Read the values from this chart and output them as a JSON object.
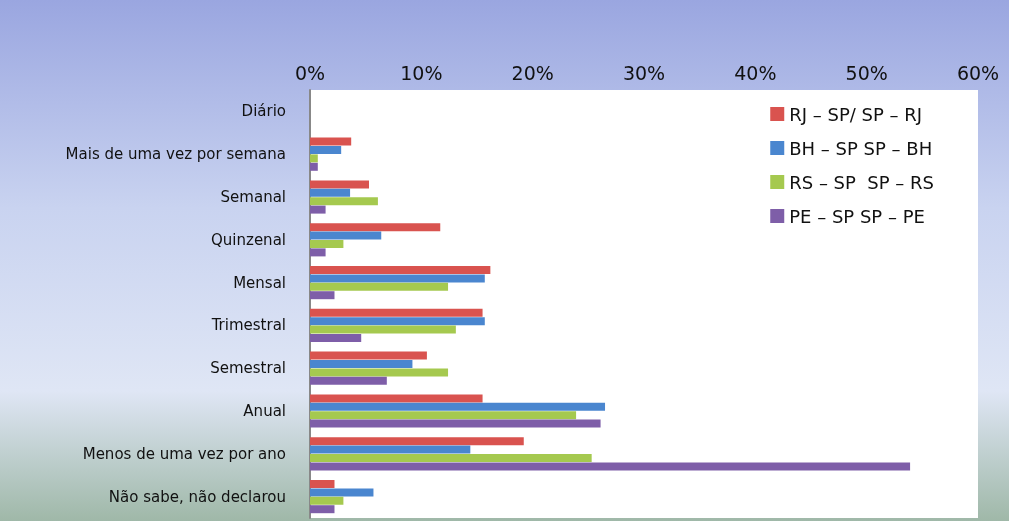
{
  "chart_data": {
    "type": "bar",
    "orientation": "horizontal",
    "categories": [
      "Diário",
      "Mais de uma vez por semana",
      "Semanal",
      "Quinzenal",
      "Mensal",
      "Trimestral",
      "Semestral",
      "Anual",
      "Menos de uma vez por ano",
      "Não sabe, não declarou"
    ],
    "series": [
      {
        "name": "RJ – SP/ SP – RJ",
        "color": "#d9534f",
        "values": [
          0,
          3.7,
          5.3,
          11.7,
          16.2,
          15.5,
          10.5,
          15.5,
          19.2,
          2.2
        ]
      },
      {
        "name": "BH – SP SP – BH",
        "color": "#4a86cf",
        "values": [
          0,
          2.8,
          3.6,
          6.4,
          15.7,
          15.7,
          9.2,
          26.5,
          14.4,
          5.7
        ]
      },
      {
        "name": "RS – SP  SP – RS",
        "color": "#a5c94f",
        "values": [
          0,
          0.7,
          6.1,
          3.0,
          12.4,
          13.1,
          12.4,
          23.9,
          25.3,
          3.0
        ]
      },
      {
        "name": "PE – SP SP – PE",
        "color": "#7e5ea8",
        "values": [
          0,
          0.7,
          1.4,
          1.4,
          2.2,
          4.6,
          6.9,
          26.1,
          53.9,
          2.2
        ]
      }
    ],
    "xlim": [
      0,
      60
    ],
    "xticks": [
      {
        "value": 0,
        "label": "0%"
      },
      {
        "value": 10,
        "label": "10%"
      },
      {
        "value": 20,
        "label": "20%"
      },
      {
        "value": 30,
        "label": "30%"
      },
      {
        "value": 40,
        "label": "40%"
      },
      {
        "value": 50,
        "label": "50%"
      },
      {
        "value": 60,
        "label": "60%"
      }
    ],
    "grid": false,
    "legend": "top right"
  }
}
